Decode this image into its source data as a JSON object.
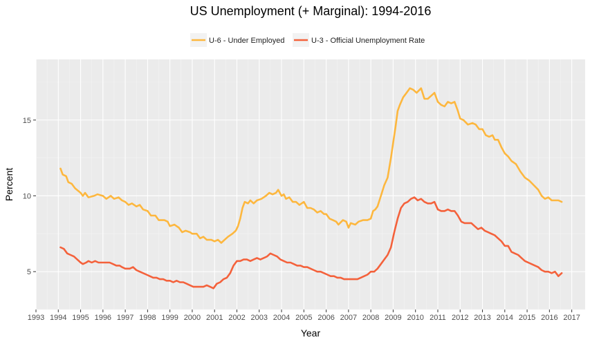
{
  "chart_data": {
    "type": "line",
    "title": "US Unemployment (+ Marginal):  1994-2016",
    "xlabel": "Year",
    "ylabel": "Percent",
    "xlim": [
      1993,
      2017.6
    ],
    "ylim": [
      2.5,
      19.0
    ],
    "x_ticks": [
      "1993",
      "1994",
      "1995",
      "1996",
      "1997",
      "1998",
      "1999",
      "2000",
      "2001",
      "2002",
      "2003",
      "2004",
      "2005",
      "2006",
      "2007",
      "2008",
      "2009",
      "2010",
      "2011",
      "2012",
      "2013",
      "2014",
      "2015",
      "2016",
      "2017"
    ],
    "y_ticks": [
      5,
      10,
      15
    ],
    "grid": true,
    "legend_position": "top",
    "series": [
      {
        "name": "U-6 - Under Employed",
        "color": "#FDB73E",
        "points": [
          [
            1994.1,
            11.8
          ],
          [
            1994.2,
            11.4
          ],
          [
            1994.35,
            11.3
          ],
          [
            1994.45,
            10.9
          ],
          [
            1994.6,
            10.8
          ],
          [
            1994.75,
            10.5
          ],
          [
            1995.0,
            10.2
          ],
          [
            1995.1,
            10.0
          ],
          [
            1995.2,
            10.2
          ],
          [
            1995.35,
            9.9
          ],
          [
            1995.6,
            10.0
          ],
          [
            1995.75,
            10.1
          ],
          [
            1996.0,
            10.0
          ],
          [
            1996.15,
            9.8
          ],
          [
            1996.35,
            10.0
          ],
          [
            1996.5,
            9.8
          ],
          [
            1996.7,
            9.9
          ],
          [
            1996.85,
            9.7
          ],
          [
            1997.0,
            9.6
          ],
          [
            1997.15,
            9.4
          ],
          [
            1997.3,
            9.5
          ],
          [
            1997.5,
            9.3
          ],
          [
            1997.65,
            9.4
          ],
          [
            1997.8,
            9.1
          ],
          [
            1998.0,
            9.0
          ],
          [
            1998.15,
            8.7
          ],
          [
            1998.35,
            8.7
          ],
          [
            1998.5,
            8.4
          ],
          [
            1998.75,
            8.4
          ],
          [
            1998.9,
            8.3
          ],
          [
            1999.0,
            8.0
          ],
          [
            1999.2,
            8.1
          ],
          [
            1999.4,
            7.9
          ],
          [
            1999.55,
            7.6
          ],
          [
            1999.7,
            7.7
          ],
          [
            1999.9,
            7.6
          ],
          [
            2000.0,
            7.5
          ],
          [
            2000.2,
            7.5
          ],
          [
            2000.35,
            7.2
          ],
          [
            2000.5,
            7.3
          ],
          [
            2000.65,
            7.1
          ],
          [
            2000.85,
            7.1
          ],
          [
            2001.0,
            7.0
          ],
          [
            2001.15,
            7.1
          ],
          [
            2001.3,
            6.9
          ],
          [
            2001.45,
            7.1
          ],
          [
            2001.6,
            7.3
          ],
          [
            2001.8,
            7.5
          ],
          [
            2001.95,
            7.7
          ],
          [
            2002.05,
            8.0
          ],
          [
            2002.15,
            8.5
          ],
          [
            2002.25,
            9.2
          ],
          [
            2002.35,
            9.6
          ],
          [
            2002.5,
            9.5
          ],
          [
            2002.6,
            9.7
          ],
          [
            2002.75,
            9.5
          ],
          [
            2002.9,
            9.7
          ],
          [
            2003.1,
            9.8
          ],
          [
            2003.3,
            10.0
          ],
          [
            2003.45,
            10.2
          ],
          [
            2003.6,
            10.1
          ],
          [
            2003.75,
            10.2
          ],
          [
            2003.85,
            10.4
          ],
          [
            2004.0,
            10.0
          ],
          [
            2004.1,
            10.1
          ],
          [
            2004.2,
            9.8
          ],
          [
            2004.35,
            9.9
          ],
          [
            2004.5,
            9.6
          ],
          [
            2004.65,
            9.6
          ],
          [
            2004.8,
            9.4
          ],
          [
            2005.0,
            9.6
          ],
          [
            2005.15,
            9.2
          ],
          [
            2005.3,
            9.2
          ],
          [
            2005.45,
            9.1
          ],
          [
            2005.6,
            8.9
          ],
          [
            2005.75,
            9.0
          ],
          [
            2005.9,
            8.8
          ],
          [
            2006.0,
            8.8
          ],
          [
            2006.15,
            8.5
          ],
          [
            2006.3,
            8.4
          ],
          [
            2006.45,
            8.3
          ],
          [
            2006.55,
            8.1
          ],
          [
            2006.75,
            8.4
          ],
          [
            2006.9,
            8.3
          ],
          [
            2007.0,
            7.9
          ],
          [
            2007.1,
            8.2
          ],
          [
            2007.3,
            8.1
          ],
          [
            2007.45,
            8.3
          ],
          [
            2007.65,
            8.4
          ],
          [
            2007.85,
            8.4
          ],
          [
            2008.0,
            8.5
          ],
          [
            2008.1,
            9.0
          ],
          [
            2008.2,
            9.1
          ],
          [
            2008.3,
            9.3
          ],
          [
            2008.45,
            10.0
          ],
          [
            2008.6,
            10.7
          ],
          [
            2008.75,
            11.2
          ],
          [
            2008.9,
            12.5
          ],
          [
            2009.0,
            13.5
          ],
          [
            2009.1,
            14.5
          ],
          [
            2009.2,
            15.6
          ],
          [
            2009.3,
            16.0
          ],
          [
            2009.45,
            16.5
          ],
          [
            2009.6,
            16.8
          ],
          [
            2009.75,
            17.1
          ],
          [
            2009.9,
            17.0
          ],
          [
            2010.05,
            16.8
          ],
          [
            2010.25,
            17.1
          ],
          [
            2010.4,
            16.4
          ],
          [
            2010.55,
            16.4
          ],
          [
            2010.7,
            16.6
          ],
          [
            2010.85,
            16.8
          ],
          [
            2011.0,
            16.2
          ],
          [
            2011.15,
            16.0
          ],
          [
            2011.3,
            15.9
          ],
          [
            2011.45,
            16.2
          ],
          [
            2011.6,
            16.1
          ],
          [
            2011.75,
            16.2
          ],
          [
            2011.9,
            15.6
          ],
          [
            2012.0,
            15.1
          ],
          [
            2012.15,
            15.0
          ],
          [
            2012.35,
            14.7
          ],
          [
            2012.55,
            14.8
          ],
          [
            2012.7,
            14.7
          ],
          [
            2012.85,
            14.4
          ],
          [
            2013.0,
            14.4
          ],
          [
            2013.15,
            14.0
          ],
          [
            2013.3,
            13.9
          ],
          [
            2013.45,
            14.0
          ],
          [
            2013.55,
            13.7
          ],
          [
            2013.7,
            13.7
          ],
          [
            2013.85,
            13.2
          ],
          [
            2014.0,
            12.8
          ],
          [
            2014.15,
            12.6
          ],
          [
            2014.3,
            12.3
          ],
          [
            2014.5,
            12.1
          ],
          [
            2014.7,
            11.6
          ],
          [
            2014.9,
            11.2
          ],
          [
            2015.1,
            11.0
          ],
          [
            2015.3,
            10.7
          ],
          [
            2015.5,
            10.4
          ],
          [
            2015.65,
            10.0
          ],
          [
            2015.8,
            9.8
          ],
          [
            2015.95,
            9.9
          ],
          [
            2016.1,
            9.7
          ],
          [
            2016.25,
            9.7
          ],
          [
            2016.4,
            9.7
          ],
          [
            2016.55,
            9.6
          ]
        ]
      },
      {
        "name": "U-3 - Official Unemployment Rate",
        "color": "#F4613B",
        "points": [
          [
            1994.1,
            6.6
          ],
          [
            1994.25,
            6.5
          ],
          [
            1994.4,
            6.2
          ],
          [
            1994.55,
            6.1
          ],
          [
            1994.7,
            6.0
          ],
          [
            1994.85,
            5.8
          ],
          [
            1995.0,
            5.6
          ],
          [
            1995.1,
            5.5
          ],
          [
            1995.25,
            5.6
          ],
          [
            1995.35,
            5.7
          ],
          [
            1995.5,
            5.6
          ],
          [
            1995.65,
            5.7
          ],
          [
            1995.8,
            5.6
          ],
          [
            1995.95,
            5.6
          ],
          [
            1996.1,
            5.6
          ],
          [
            1996.3,
            5.6
          ],
          [
            1996.45,
            5.5
          ],
          [
            1996.6,
            5.4
          ],
          [
            1996.75,
            5.4
          ],
          [
            1996.85,
            5.3
          ],
          [
            1997.0,
            5.2
          ],
          [
            1997.2,
            5.2
          ],
          [
            1997.35,
            5.3
          ],
          [
            1997.5,
            5.1
          ],
          [
            1997.65,
            5.0
          ],
          [
            1997.8,
            4.9
          ],
          [
            1997.95,
            4.8
          ],
          [
            1998.1,
            4.7
          ],
          [
            1998.25,
            4.6
          ],
          [
            1998.4,
            4.6
          ],
          [
            1998.55,
            4.5
          ],
          [
            1998.7,
            4.5
          ],
          [
            1998.85,
            4.4
          ],
          [
            1999.0,
            4.4
          ],
          [
            1999.15,
            4.3
          ],
          [
            1999.3,
            4.4
          ],
          [
            1999.45,
            4.3
          ],
          [
            1999.6,
            4.3
          ],
          [
            1999.75,
            4.2
          ],
          [
            1999.9,
            4.1
          ],
          [
            2000.05,
            4.0
          ],
          [
            2000.2,
            4.0
          ],
          [
            2000.35,
            4.0
          ],
          [
            2000.5,
            4.0
          ],
          [
            2000.65,
            4.1
          ],
          [
            2000.8,
            4.0
          ],
          [
            2000.95,
            3.9
          ],
          [
            2001.1,
            4.2
          ],
          [
            2001.25,
            4.3
          ],
          [
            2001.4,
            4.5
          ],
          [
            2001.55,
            4.6
          ],
          [
            2001.7,
            4.9
          ],
          [
            2001.85,
            5.4
          ],
          [
            2002.0,
            5.7
          ],
          [
            2002.15,
            5.7
          ],
          [
            2002.3,
            5.8
          ],
          [
            2002.45,
            5.8
          ],
          [
            2002.6,
            5.7
          ],
          [
            2002.75,
            5.8
          ],
          [
            2002.9,
            5.9
          ],
          [
            2003.05,
            5.8
          ],
          [
            2003.2,
            5.9
          ],
          [
            2003.35,
            6.0
          ],
          [
            2003.5,
            6.2
          ],
          [
            2003.65,
            6.1
          ],
          [
            2003.8,
            6.0
          ],
          [
            2003.95,
            5.8
          ],
          [
            2004.1,
            5.7
          ],
          [
            2004.25,
            5.6
          ],
          [
            2004.4,
            5.6
          ],
          [
            2004.55,
            5.5
          ],
          [
            2004.7,
            5.4
          ],
          [
            2004.85,
            5.4
          ],
          [
            2005.0,
            5.3
          ],
          [
            2005.15,
            5.3
          ],
          [
            2005.3,
            5.2
          ],
          [
            2005.45,
            5.1
          ],
          [
            2005.6,
            5.0
          ],
          [
            2005.75,
            5.0
          ],
          [
            2005.9,
            4.9
          ],
          [
            2006.05,
            4.8
          ],
          [
            2006.2,
            4.7
          ],
          [
            2006.35,
            4.7
          ],
          [
            2006.5,
            4.6
          ],
          [
            2006.65,
            4.6
          ],
          [
            2006.8,
            4.5
          ],
          [
            2006.95,
            4.5
          ],
          [
            2007.1,
            4.5
          ],
          [
            2007.25,
            4.5
          ],
          [
            2007.4,
            4.5
          ],
          [
            2007.55,
            4.6
          ],
          [
            2007.7,
            4.7
          ],
          [
            2007.85,
            4.8
          ],
          [
            2008.0,
            5.0
          ],
          [
            2008.15,
            5.0
          ],
          [
            2008.3,
            5.2
          ],
          [
            2008.45,
            5.5
          ],
          [
            2008.6,
            5.8
          ],
          [
            2008.75,
            6.1
          ],
          [
            2008.9,
            6.6
          ],
          [
            2009.05,
            7.6
          ],
          [
            2009.2,
            8.5
          ],
          [
            2009.35,
            9.2
          ],
          [
            2009.5,
            9.5
          ],
          [
            2009.65,
            9.6
          ],
          [
            2009.8,
            9.8
          ],
          [
            2009.95,
            9.9
          ],
          [
            2010.1,
            9.7
          ],
          [
            2010.25,
            9.8
          ],
          [
            2010.4,
            9.6
          ],
          [
            2010.55,
            9.5
          ],
          [
            2010.7,
            9.5
          ],
          [
            2010.85,
            9.6
          ],
          [
            2011.0,
            9.1
          ],
          [
            2011.15,
            9.0
          ],
          [
            2011.3,
            9.0
          ],
          [
            2011.45,
            9.1
          ],
          [
            2011.6,
            9.0
          ],
          [
            2011.75,
            9.0
          ],
          [
            2011.9,
            8.7
          ],
          [
            2012.05,
            8.3
          ],
          [
            2012.2,
            8.2
          ],
          [
            2012.35,
            8.2
          ],
          [
            2012.5,
            8.2
          ],
          [
            2012.65,
            8.0
          ],
          [
            2012.8,
            7.8
          ],
          [
            2012.95,
            7.9
          ],
          [
            2013.1,
            7.7
          ],
          [
            2013.25,
            7.6
          ],
          [
            2013.4,
            7.5
          ],
          [
            2013.55,
            7.4
          ],
          [
            2013.7,
            7.2
          ],
          [
            2013.85,
            7.0
          ],
          [
            2014.0,
            6.7
          ],
          [
            2014.15,
            6.7
          ],
          [
            2014.3,
            6.3
          ],
          [
            2014.45,
            6.2
          ],
          [
            2014.6,
            6.1
          ],
          [
            2014.75,
            5.9
          ],
          [
            2014.9,
            5.7
          ],
          [
            2015.05,
            5.6
          ],
          [
            2015.2,
            5.5
          ],
          [
            2015.35,
            5.4
          ],
          [
            2015.5,
            5.3
          ],
          [
            2015.65,
            5.1
          ],
          [
            2015.8,
            5.0
          ],
          [
            2015.95,
            5.0
          ],
          [
            2016.1,
            4.9
          ],
          [
            2016.25,
            5.0
          ],
          [
            2016.4,
            4.7
          ],
          [
            2016.55,
            4.9
          ]
        ]
      }
    ]
  }
}
